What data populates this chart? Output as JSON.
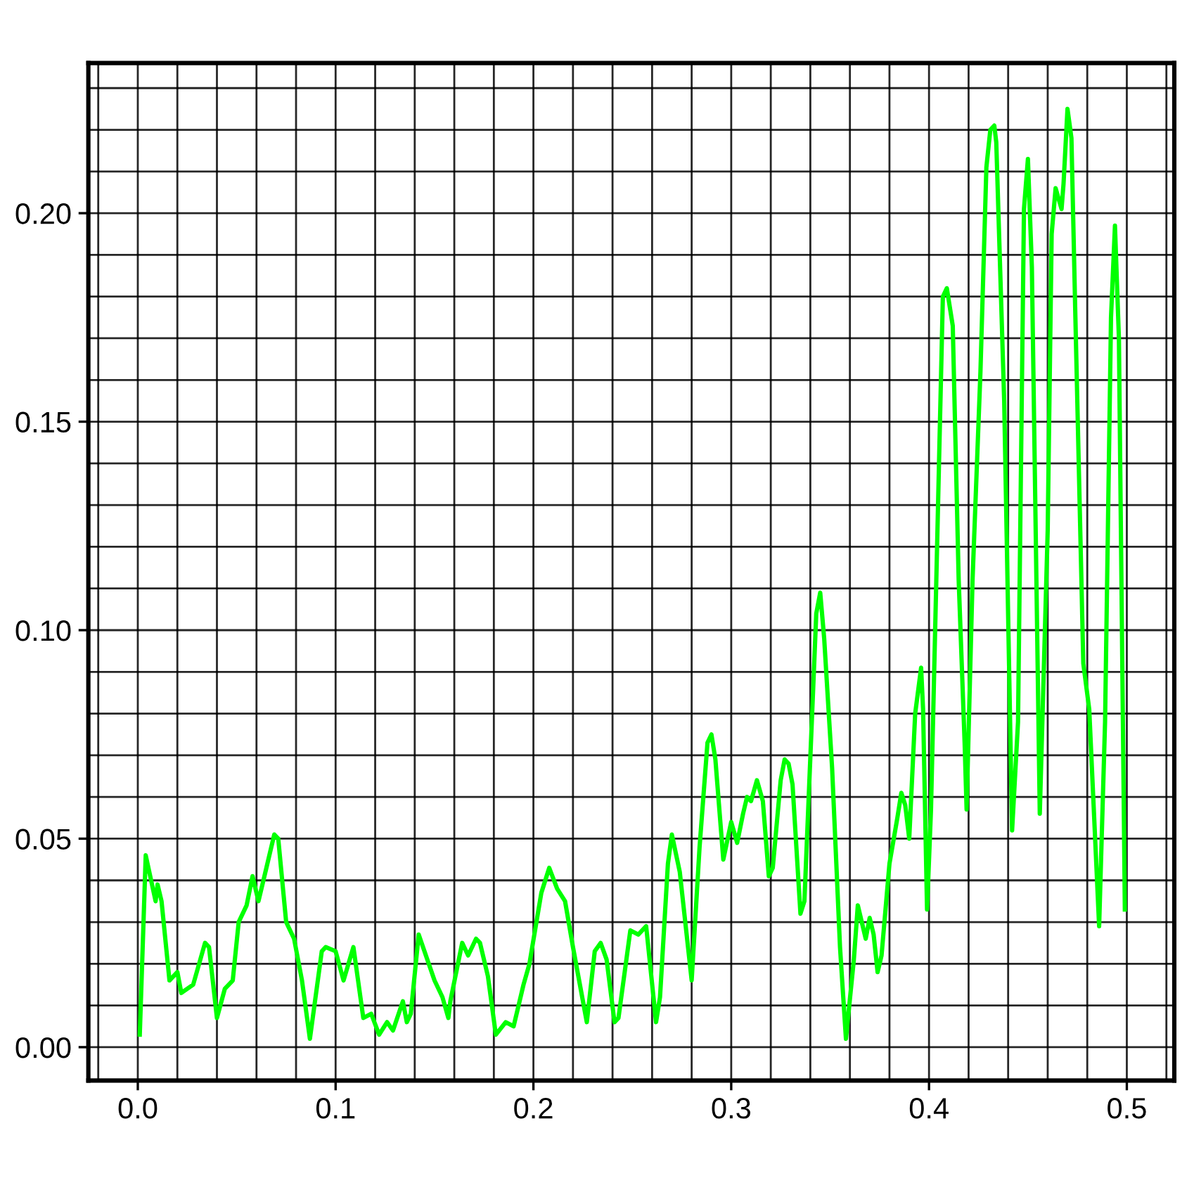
{
  "chart_data": {
    "type": "line",
    "grid": true,
    "marker": "none",
    "line_style": "solid",
    "xlim": [
      -0.025,
      0.524
    ],
    "ylim": [
      -0.008,
      0.236
    ],
    "xticks": [
      {
        "value": -0.02,
        "label": null
      },
      {
        "value": 0.0,
        "label": "0.0"
      },
      {
        "value": 0.02,
        "label": null
      },
      {
        "value": 0.04,
        "label": null
      },
      {
        "value": 0.06,
        "label": null
      },
      {
        "value": 0.08,
        "label": null
      },
      {
        "value": 0.1,
        "label": "0.1"
      },
      {
        "value": 0.12,
        "label": null
      },
      {
        "value": 0.14,
        "label": null
      },
      {
        "value": 0.16,
        "label": null
      },
      {
        "value": 0.18,
        "label": null
      },
      {
        "value": 0.2,
        "label": "0.2"
      },
      {
        "value": 0.22,
        "label": null
      },
      {
        "value": 0.24,
        "label": null
      },
      {
        "value": 0.26,
        "label": null
      },
      {
        "value": 0.28,
        "label": null
      },
      {
        "value": 0.3,
        "label": "0.3"
      },
      {
        "value": 0.32,
        "label": null
      },
      {
        "value": 0.34,
        "label": null
      },
      {
        "value": 0.36,
        "label": null
      },
      {
        "value": 0.38,
        "label": null
      },
      {
        "value": 0.4,
        "label": "0.4"
      },
      {
        "value": 0.42,
        "label": null
      },
      {
        "value": 0.44,
        "label": null
      },
      {
        "value": 0.46,
        "label": null
      },
      {
        "value": 0.48,
        "label": null
      },
      {
        "value": 0.5,
        "label": "0.5"
      },
      {
        "value": 0.52,
        "label": null
      }
    ],
    "yticks": [
      {
        "value": 0.0,
        "label": "0.00"
      },
      {
        "value": 0.01,
        "label": null
      },
      {
        "value": 0.02,
        "label": null
      },
      {
        "value": 0.03,
        "label": null
      },
      {
        "value": 0.04,
        "label": null
      },
      {
        "value": 0.05,
        "label": "0.05"
      },
      {
        "value": 0.06,
        "label": null
      },
      {
        "value": 0.07,
        "label": null
      },
      {
        "value": 0.08,
        "label": null
      },
      {
        "value": 0.09,
        "label": null
      },
      {
        "value": 0.1,
        "label": "0.10"
      },
      {
        "value": 0.11,
        "label": null
      },
      {
        "value": 0.12,
        "label": null
      },
      {
        "value": 0.13,
        "label": null
      },
      {
        "value": 0.14,
        "label": null
      },
      {
        "value": 0.15,
        "label": "0.15"
      },
      {
        "value": 0.16,
        "label": null
      },
      {
        "value": 0.17,
        "label": null
      },
      {
        "value": 0.18,
        "label": null
      },
      {
        "value": 0.19,
        "label": null
      },
      {
        "value": 0.2,
        "label": "0.20"
      },
      {
        "value": 0.21,
        "label": null
      },
      {
        "value": 0.22,
        "label": null
      },
      {
        "value": 0.23,
        "label": null
      }
    ],
    "series": [
      {
        "color": "#00ff00",
        "x": [
          0.001,
          0.004,
          0.009,
          0.01,
          0.012,
          0.016,
          0.02,
          0.022,
          0.028,
          0.034,
          0.036,
          0.04,
          0.044,
          0.048,
          0.051,
          0.055,
          0.058,
          0.061,
          0.065,
          0.069,
          0.071,
          0.075,
          0.079,
          0.083,
          0.087,
          0.093,
          0.095,
          0.1,
          0.104,
          0.109,
          0.114,
          0.118,
          0.122,
          0.126,
          0.129,
          0.134,
          0.136,
          0.138,
          0.142,
          0.15,
          0.154,
          0.157,
          0.158,
          0.164,
          0.167,
          0.171,
          0.173,
          0.177,
          0.181,
          0.186,
          0.19,
          0.195,
          0.198,
          0.204,
          0.208,
          0.212,
          0.216,
          0.22,
          0.227,
          0.231,
          0.234,
          0.237,
          0.241,
          0.243,
          0.249,
          0.253,
          0.257,
          0.262,
          0.264,
          0.268,
          0.27,
          0.274,
          0.28,
          0.284,
          0.288,
          0.29,
          0.292,
          0.296,
          0.3,
          0.303,
          0.306,
          0.308,
          0.31,
          0.313,
          0.316,
          0.319,
          0.321,
          0.325,
          0.327,
          0.329,
          0.331,
          0.335,
          0.337,
          0.343,
          0.345,
          0.347,
          0.351,
          0.355,
          0.358,
          0.362,
          0.364,
          0.368,
          0.37,
          0.372,
          0.374,
          0.376,
          0.38,
          0.384,
          0.386,
          0.388,
          0.39,
          0.393,
          0.396,
          0.397,
          0.399,
          0.401,
          0.405,
          0.407,
          0.409,
          0.412,
          0.415,
          0.418,
          0.419,
          0.422,
          0.426,
          0.429,
          0.431,
          0.433,
          0.434,
          0.438,
          0.442,
          0.445,
          0.448,
          0.45,
          0.452,
          0.456,
          0.46,
          0.462,
          0.464,
          0.467,
          0.468,
          0.47,
          0.472,
          0.474,
          0.478,
          0.481,
          0.486,
          0.489,
          0.492,
          0.494,
          0.496,
          0.499
        ],
        "values": [
          0.003,
          0.046,
          0.035,
          0.039,
          0.035,
          0.016,
          0.018,
          0.013,
          0.015,
          0.025,
          0.024,
          0.007,
          0.014,
          0.016,
          0.03,
          0.034,
          0.041,
          0.035,
          0.043,
          0.051,
          0.05,
          0.03,
          0.026,
          0.016,
          0.002,
          0.023,
          0.024,
          0.023,
          0.016,
          0.024,
          0.007,
          0.008,
          0.003,
          0.006,
          0.004,
          0.011,
          0.006,
          0.008,
          0.027,
          0.016,
          0.012,
          0.007,
          0.011,
          0.025,
          0.022,
          0.026,
          0.025,
          0.017,
          0.003,
          0.006,
          0.005,
          0.015,
          0.02,
          0.037,
          0.043,
          0.038,
          0.035,
          0.024,
          0.006,
          0.023,
          0.025,
          0.021,
          0.006,
          0.007,
          0.028,
          0.027,
          0.029,
          0.006,
          0.012,
          0.044,
          0.051,
          0.042,
          0.016,
          0.048,
          0.073,
          0.075,
          0.069,
          0.045,
          0.054,
          0.049,
          0.056,
          0.06,
          0.059,
          0.064,
          0.059,
          0.041,
          0.043,
          0.064,
          0.069,
          0.068,
          0.063,
          0.032,
          0.035,
          0.104,
          0.109,
          0.098,
          0.067,
          0.024,
          0.002,
          0.021,
          0.034,
          0.026,
          0.031,
          0.027,
          0.018,
          0.022,
          0.044,
          0.055,
          0.061,
          0.058,
          0.05,
          0.08,
          0.091,
          0.081,
          0.033,
          0.057,
          0.139,
          0.18,
          0.182,
          0.173,
          0.112,
          0.073,
          0.057,
          0.112,
          0.162,
          0.211,
          0.22,
          0.221,
          0.217,
          0.155,
          0.052,
          0.078,
          0.201,
          0.213,
          0.187,
          0.056,
          0.124,
          0.195,
          0.206,
          0.201,
          0.207,
          0.225,
          0.218,
          0.175,
          0.092,
          0.081,
          0.029,
          0.078,
          0.175,
          0.197,
          0.17,
          0.033
        ]
      }
    ]
  }
}
